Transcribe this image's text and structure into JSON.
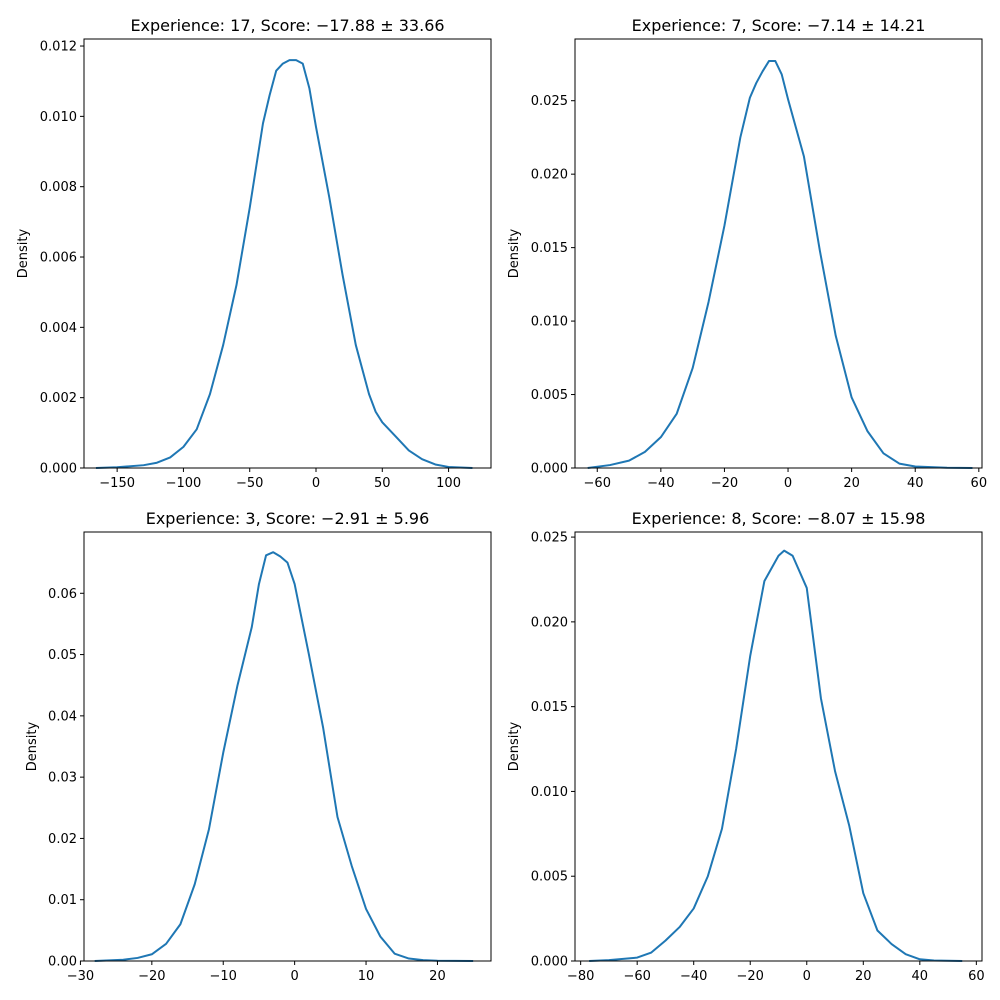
{
  "colors": {
    "line": "#1f77b4"
  },
  "chart_data": [
    {
      "type": "line",
      "title": "Experience: 17, Score: −17.88 ± 33.66",
      "xlabel": "",
      "ylabel": "Density",
      "xlim": [
        -175,
        132
      ],
      "ylim": [
        0,
        0.0122
      ],
      "xticks": [
        -150,
        -100,
        -50,
        0,
        50,
        100
      ],
      "xtick_labels": [
        "−150",
        "−100",
        "−50",
        "0",
        "50",
        "100"
      ],
      "yticks": [
        0,
        0.002,
        0.004,
        0.006,
        0.008,
        0.01,
        0.012
      ],
      "ytick_labels": [
        "0.000",
        "0.002",
        "0.004",
        "0.006",
        "0.008",
        "0.010",
        "0.012"
      ],
      "grid": false,
      "x": [
        -166,
        -150,
        -130,
        -120,
        -110,
        -100,
        -90,
        -80,
        -70,
        -60,
        -50,
        -40,
        -35,
        -30,
        -25,
        -20,
        -15,
        -10,
        -5,
        0,
        10,
        20,
        30,
        40,
        45,
        50,
        60,
        70,
        80,
        90,
        100,
        118
      ],
      "values": [
        0,
        2e-05,
        8e-05,
        0.00015,
        0.0003,
        0.0006,
        0.0011,
        0.0021,
        0.0035,
        0.0052,
        0.0074,
        0.0098,
        0.0106,
        0.0113,
        0.0115,
        0.0116,
        0.0116,
        0.0115,
        0.0108,
        0.0097,
        0.0077,
        0.0055,
        0.0035,
        0.0021,
        0.0016,
        0.0013,
        0.0009,
        0.0005,
        0.00025,
        0.0001,
        3e-05,
        0
      ]
    },
    {
      "type": "line",
      "title": "Experience: 7, Score: −7.14 ± 14.21",
      "xlabel": "",
      "ylabel": "Density",
      "xlim": [
        -67,
        61
      ],
      "ylim": [
        0,
        0.0292
      ],
      "xticks": [
        -60,
        -40,
        -20,
        0,
        20,
        40,
        60
      ],
      "xtick_labels": [
        "−60",
        "−40",
        "−20",
        "0",
        "20",
        "40",
        "60"
      ],
      "yticks": [
        0,
        0.005,
        0.01,
        0.015,
        0.02,
        0.025
      ],
      "ytick_labels": [
        "0.000",
        "0.005",
        "0.010",
        "0.015",
        "0.020",
        "0.025"
      ],
      "grid": false,
      "x": [
        -63,
        -56,
        -50,
        -45,
        -40,
        -35,
        -30,
        -25,
        -20,
        -15,
        -12,
        -10,
        -8,
        -6,
        -4,
        -2,
        0,
        5,
        10,
        15,
        20,
        25,
        30,
        35,
        40,
        50,
        58
      ],
      "values": [
        0,
        0.0002,
        0.0005,
        0.0011,
        0.0021,
        0.0037,
        0.0068,
        0.0113,
        0.0165,
        0.0225,
        0.0252,
        0.0262,
        0.027,
        0.0277,
        0.0277,
        0.0268,
        0.0251,
        0.0212,
        0.0148,
        0.009,
        0.0048,
        0.0025,
        0.001,
        0.0003,
        0.0001,
        2e-05,
        0
      ]
    },
    {
      "type": "line",
      "title": "Experience: 3, Score: −2.91 ± 5.96",
      "xlabel": "",
      "ylabel": "Density",
      "xlim": [
        -29.5,
        27.5
      ],
      "ylim": [
        0,
        0.07
      ],
      "xticks": [
        -30,
        -20,
        -10,
        0,
        10,
        20
      ],
      "xtick_labels": [
        "−30",
        "−20",
        "−10",
        "0",
        "10",
        "20"
      ],
      "yticks": [
        0,
        0.01,
        0.02,
        0.03,
        0.04,
        0.05,
        0.06
      ],
      "ytick_labels": [
        "0.00",
        "0.01",
        "0.02",
        "0.03",
        "0.04",
        "0.05",
        "0.06"
      ],
      "grid": false,
      "x": [
        -28,
        -24,
        -22,
        -20,
        -18,
        -16,
        -14,
        -12,
        -10,
        -8,
        -6,
        -5,
        -4,
        -3,
        -2,
        -1,
        0,
        2,
        4,
        6,
        8,
        10,
        12,
        14,
        16,
        18,
        20,
        25
      ],
      "values": [
        0,
        0.0002,
        0.0005,
        0.0011,
        0.0028,
        0.006,
        0.0125,
        0.0215,
        0.034,
        0.045,
        0.0545,
        0.0615,
        0.0662,
        0.0667,
        0.066,
        0.065,
        0.0615,
        0.05,
        0.038,
        0.0235,
        0.0155,
        0.0085,
        0.004,
        0.0012,
        0.0004,
        0.00015,
        5e-05,
        0
      ]
    },
    {
      "type": "line",
      "title": "Experience: 8, Score: −8.07 ± 15.98",
      "xlabel": "",
      "ylabel": "Density",
      "xlim": [
        -82,
        62
      ],
      "ylim": [
        0,
        0.0253
      ],
      "xticks": [
        -80,
        -60,
        -40,
        -20,
        0,
        20,
        40,
        60
      ],
      "xtick_labels": [
        "−80",
        "−60",
        "−40",
        "−20",
        "0",
        "20",
        "40",
        "60"
      ],
      "yticks": [
        0,
        0.005,
        0.01,
        0.015,
        0.02,
        0.025
      ],
      "ytick_labels": [
        "0.000",
        "0.005",
        "0.010",
        "0.015",
        "0.020",
        "0.025"
      ],
      "grid": false,
      "x": [
        -77,
        -70,
        -60,
        -55,
        -50,
        -45,
        -40,
        -35,
        -30,
        -25,
        -20,
        -15,
        -10,
        -8,
        -5,
        0,
        5,
        10,
        15,
        20,
        25,
        30,
        35,
        40,
        45,
        55
      ],
      "values": [
        0,
        5e-05,
        0.0002,
        0.0005,
        0.0012,
        0.002,
        0.0031,
        0.005,
        0.0078,
        0.0125,
        0.018,
        0.0224,
        0.0239,
        0.0242,
        0.0239,
        0.022,
        0.0155,
        0.0112,
        0.008,
        0.004,
        0.0018,
        0.001,
        0.0004,
        0.0001,
        3e-05,
        0
      ]
    }
  ]
}
